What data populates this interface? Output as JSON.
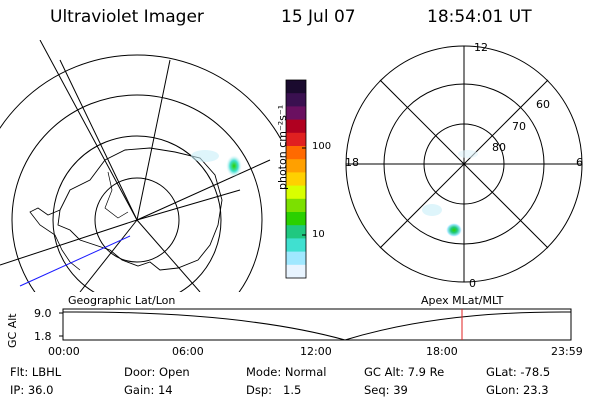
{
  "header": {
    "instrument": "Ultraviolet Imager",
    "date": "15 Jul 07",
    "time": "18:54:01 UT"
  },
  "colorbar": {
    "unit_label": "photon cm⁻²s⁻¹",
    "ticks": [
      "100",
      "10"
    ],
    "colors_top_to_bottom": [
      "#1a0a2e",
      "#3a1050",
      "#6a1060",
      "#b00020",
      "#e02020",
      "#ff6a00",
      "#ffa000",
      "#ffd000",
      "#d8ff00",
      "#7ce000",
      "#2ad000",
      "#20c880",
      "#40e0d0",
      "#a0e8ff",
      "#e8f4ff"
    ]
  },
  "left_map": {
    "caption": "Geographic Lat/Lon"
  },
  "right_map": {
    "caption": "Apex MLat/MLT",
    "mlt_labels": {
      "top": "12",
      "left": "18",
      "right": "6",
      "bottom": "0"
    },
    "lat_labels": [
      "60",
      "70",
      "80"
    ]
  },
  "altitude_plot": {
    "axis_title": "GC Alt",
    "y_ticks": [
      "9.0",
      "1.8"
    ],
    "x_ticks": [
      "00:00",
      "06:00",
      "12:00",
      "18:00",
      "23:59"
    ]
  },
  "status": {
    "flt_label": "Flt:",
    "flt_value": "LBHL",
    "ip_label": "IP:",
    "ip_value": "36.0",
    "door_label": "Door:",
    "door_value": "Open",
    "gain_label": "Gain:",
    "gain_value": "14",
    "mode_label": "Mode:",
    "mode_value": "Normal",
    "dsp_label": "Dsp:",
    "dsp_value": "1.5",
    "gcalt_label": "GC Alt:",
    "gcalt_value": "7.9 Re",
    "seq_label": "Seq:",
    "seq_value": "39",
    "glat_label": "GLat:",
    "glat_value": "-78.5",
    "glon_label": "GLon:",
    "glon_value": "23.3"
  }
}
